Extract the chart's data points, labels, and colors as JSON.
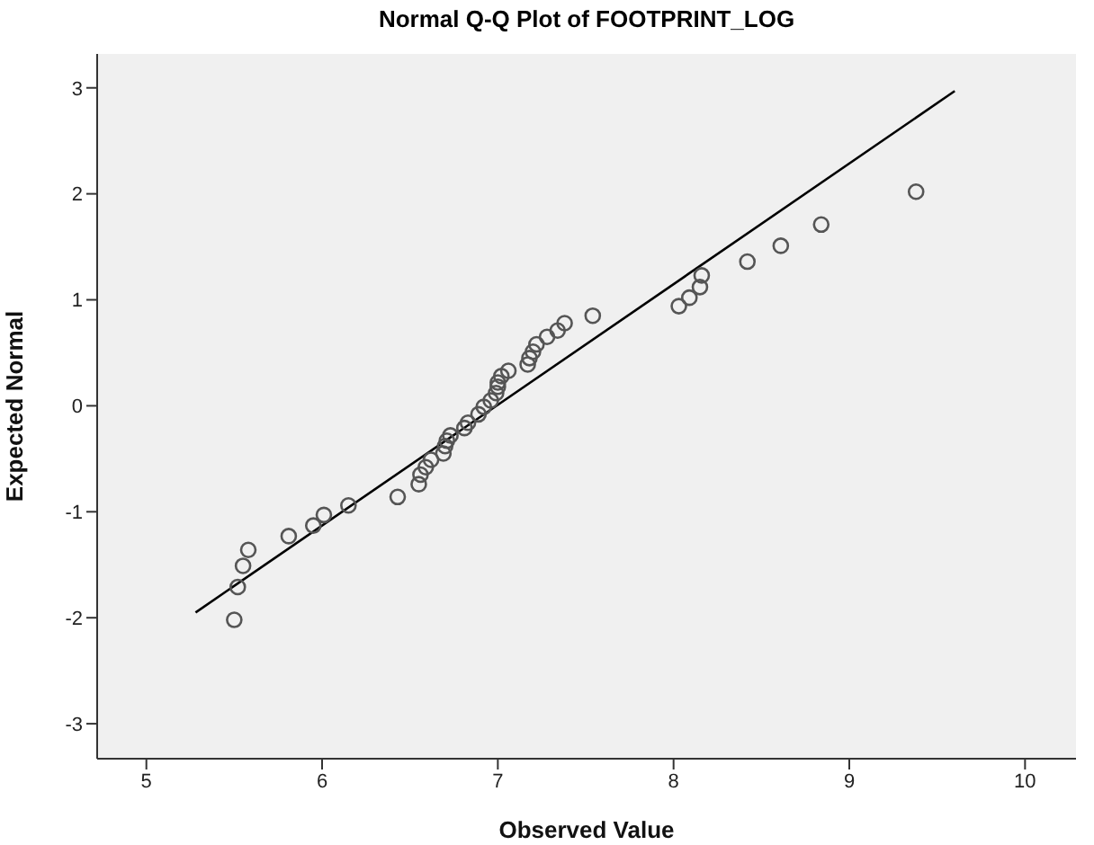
{
  "chart_data": {
    "type": "scatter",
    "title": "Normal Q-Q Plot of FOOTPRINT_LOG",
    "xlabel": "Observed Value",
    "ylabel": "Expected Normal",
    "xlim": [
      4.72,
      10.29
    ],
    "xticks": [
      5,
      6,
      7,
      8,
      9,
      10
    ],
    "ylim": [
      -3.33,
      3.32
    ],
    "yticks": [
      -3,
      -2,
      -1,
      0,
      1,
      2,
      3
    ],
    "grid": false,
    "legend": false,
    "series": [
      {
        "marker": "circle",
        "color": "#555555",
        "x": [
          5.5,
          5.52,
          5.55,
          5.58,
          5.81,
          5.95,
          6.01,
          6.15,
          6.43,
          6.55,
          6.56,
          6.59,
          6.62,
          6.69,
          6.7,
          6.71,
          6.73,
          6.81,
          6.83,
          6.89,
          6.92,
          6.96,
          6.99,
          7.0,
          7.0,
          7.02,
          7.06,
          7.17,
          7.18,
          7.2,
          7.22,
          7.28,
          7.34,
          7.38,
          7.54,
          8.03,
          8.09,
          8.15,
          8.16,
          8.42,
          8.61,
          8.84,
          9.38
        ],
        "values": [
          -2.02,
          -1.71,
          -1.51,
          -1.36,
          -1.23,
          -1.13,
          -1.03,
          -0.94,
          -0.86,
          -0.74,
          -0.65,
          -0.58,
          -0.51,
          -0.45,
          -0.38,
          -0.33,
          -0.28,
          -0.21,
          -0.16,
          -0.08,
          -0.01,
          0.05,
          0.12,
          0.18,
          0.22,
          0.28,
          0.33,
          0.39,
          0.45,
          0.51,
          0.58,
          0.65,
          0.71,
          0.78,
          0.85,
          0.94,
          1.02,
          1.12,
          1.23,
          1.36,
          1.51,
          1.71,
          2.02
        ]
      },
      {
        "type": "line",
        "marker": "none",
        "color": "#000000",
        "x": [
          5.28,
          9.6
        ],
        "values": [
          -1.95,
          2.97
        ]
      }
    ]
  }
}
